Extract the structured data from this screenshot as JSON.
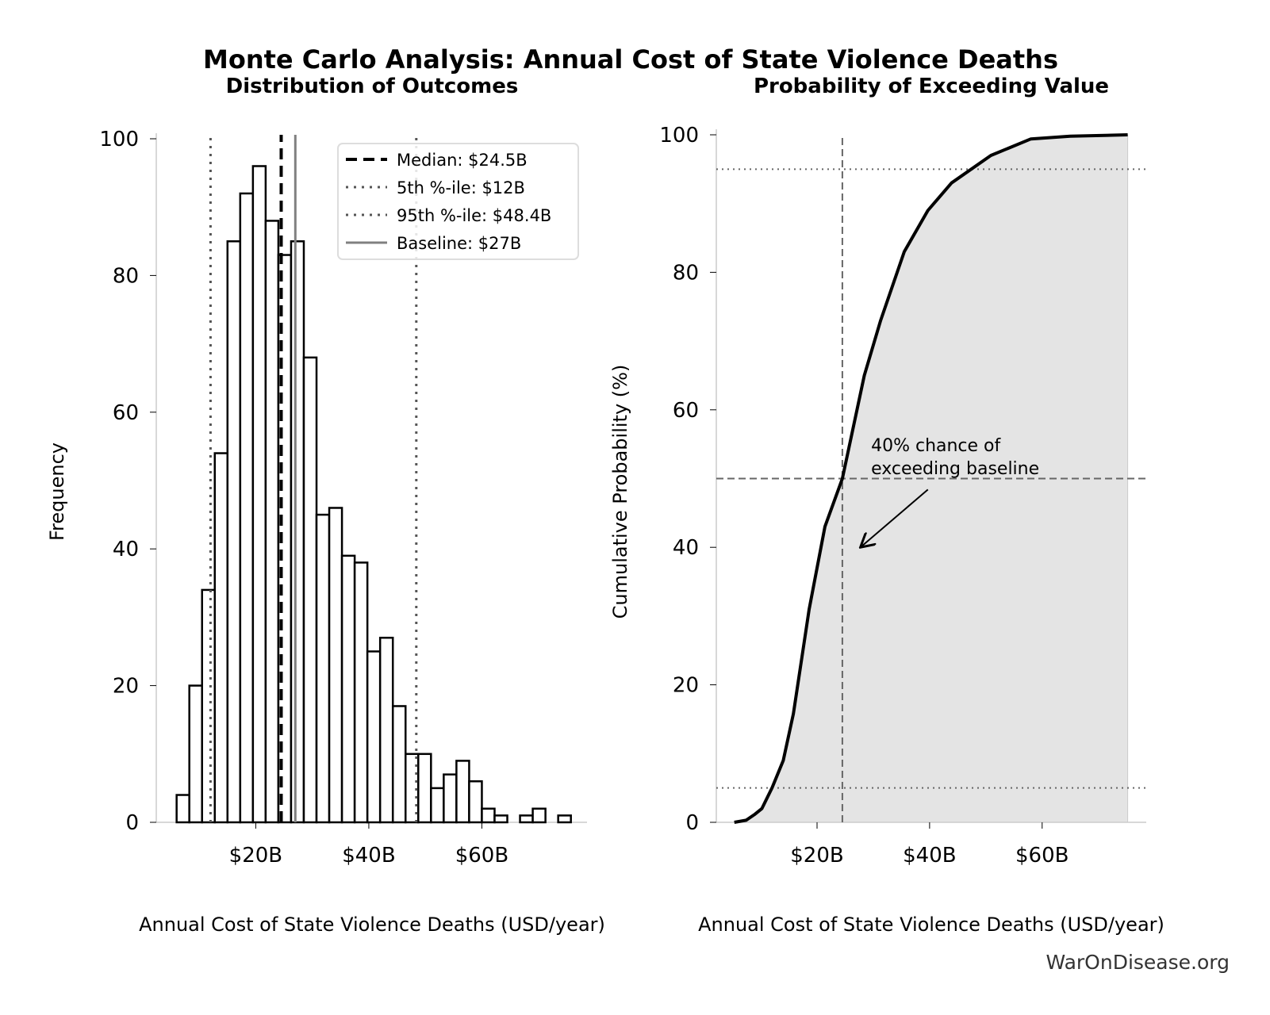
{
  "title": "Monte Carlo Analysis: Annual Cost of State Violence Deaths",
  "watermark": "WarOnDisease.org",
  "colors": {
    "bar_edge": "#000000",
    "bar_fill": "#ffffff",
    "fill_area": "#e4e4e4",
    "ref_line": "#555555",
    "baseline": "#808080"
  },
  "chart_data": [
    {
      "type": "bar",
      "title": "Distribution of Outcomes",
      "xlabel": "Annual Cost of State Violence Deaths (USD/year)",
      "ylabel": "Frequency",
      "bin_start": 6.0,
      "bin_width": 2.25,
      "values": [
        4,
        20,
        34,
        54,
        85,
        92,
        96,
        88,
        83,
        85,
        68,
        45,
        46,
        39,
        38,
        25,
        27,
        17,
        10,
        10,
        5,
        7,
        9,
        6,
        2,
        1,
        0,
        1,
        2,
        0,
        1
      ],
      "xlim": [
        2.4,
        78.6
      ],
      "ylim": [
        0,
        100
      ],
      "xticks": [
        {
          "v": 20,
          "label": "$20B"
        },
        {
          "v": 40,
          "label": "$40B"
        },
        {
          "v": 60,
          "label": "$60B"
        }
      ],
      "yticks": [
        {
          "v": 0,
          "label": "0"
        },
        {
          "v": 20,
          "label": "20"
        },
        {
          "v": 40,
          "label": "40"
        },
        {
          "v": 60,
          "label": "60"
        },
        {
          "v": 80,
          "label": "80"
        },
        {
          "v": 100,
          "label": "100"
        }
      ],
      "reference_lines": [
        {
          "name": "Median: $24.5B",
          "x": 24.5,
          "style": "dashed"
        },
        {
          "name": "5th %-ile: $12B",
          "x": 12,
          "style": "dotted"
        },
        {
          "name": "95th %-ile: $48.4B",
          "x": 48.4,
          "style": "dotted"
        },
        {
          "name": "Baseline: $27B",
          "x": 27,
          "style": "solid"
        }
      ],
      "legend": "top-right"
    },
    {
      "type": "area",
      "title": "Probability of Exceeding Value",
      "xlabel": "Annual Cost of State Violence Deaths (USD/year)",
      "ylabel": "Cumulative Probability (%)",
      "x": [
        5.3,
        7.4,
        9,
        10.2,
        12,
        14,
        15.8,
        18.6,
        21.4,
        24.5,
        28.4,
        31.3,
        35.5,
        39.7,
        43.9,
        50.9,
        58,
        65,
        75.2
      ],
      "y": [
        0,
        0.3,
        1.2,
        2,
        5,
        9,
        15.8,
        31,
        43,
        50,
        65,
        73,
        83,
        89,
        93,
        97,
        99.4,
        99.8,
        100
      ],
      "xlim": [
        2.1,
        78.5
      ],
      "ylim": [
        0,
        100
      ],
      "xticks": [
        {
          "v": 20,
          "label": "$20B"
        },
        {
          "v": 40,
          "label": "$40B"
        },
        {
          "v": 60,
          "label": "$60B"
        }
      ],
      "yticks": [
        {
          "v": 0,
          "label": "0"
        },
        {
          "v": 20,
          "label": "20"
        },
        {
          "v": 40,
          "label": "40"
        },
        {
          "v": 60,
          "label": "60"
        },
        {
          "v": 80,
          "label": "80"
        },
        {
          "v": 100,
          "label": "100"
        }
      ],
      "hlines": [
        {
          "y": 95,
          "style": "dotted"
        },
        {
          "y": 50,
          "style": "dashed"
        },
        {
          "y": 5,
          "style": "dotted"
        }
      ],
      "vline": {
        "x": 24.5,
        "style": "dashed"
      },
      "annotation": {
        "lines": [
          "40% chance of",
          "exceeding baseline"
        ],
        "text_at": [
          29.6,
          54
        ],
        "arrow_from": [
          39.7,
          48.4
        ],
        "arrow_to": [
          27.7,
          40
        ]
      }
    }
  ]
}
